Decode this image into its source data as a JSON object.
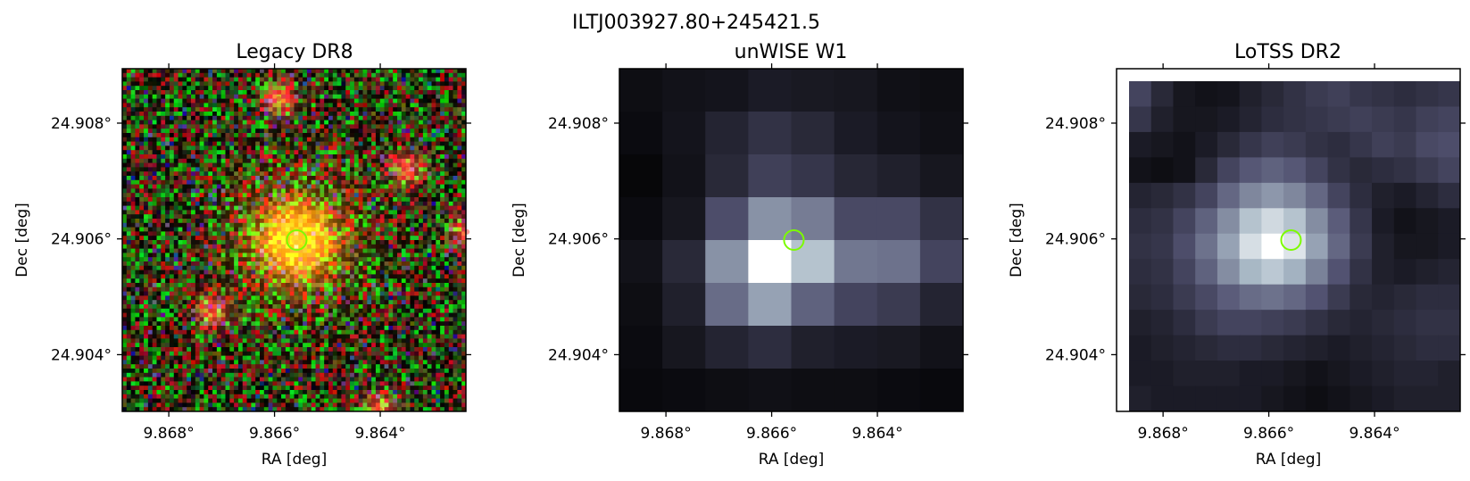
{
  "figure": {
    "suptitle": "ILTJ003927.80+245421.5"
  },
  "chart_data": [
    {
      "type": "heatmap",
      "title": "Legacy DR8",
      "xlabel": "RA [deg]",
      "ylabel": "Dec [deg]",
      "x_ticks": [
        "9.868°",
        "9.866°",
        "9.864°"
      ],
      "y_ticks": [
        "24.908°",
        "24.906°",
        "24.904°"
      ],
      "x_tick_values": [
        9.868,
        9.866,
        9.864
      ],
      "y_tick_values": [
        24.908,
        24.906,
        24.904
      ],
      "xlim": [
        9.86888,
        9.86238
      ],
      "ylim": [
        24.90302,
        24.90894
      ],
      "colormap": "rgb-composite",
      "marker": {
        "ra": 9.86558,
        "dec": 24.90598,
        "shape": "circle",
        "color": "#7cfc00"
      },
      "sources": [
        {
          "ra": 9.86558,
          "dec": 24.90598,
          "kind": "bright-center"
        },
        {
          "ra": 9.86236,
          "dec": 24.90612
        },
        {
          "ra": 9.86592,
          "dec": 24.90842
        },
        {
          "ra": 9.86718,
          "dec": 24.90475
        },
        {
          "ra": 9.8635,
          "dec": 24.90722
        },
        {
          "ra": 9.864,
          "dec": 24.90305
        }
      ]
    },
    {
      "type": "heatmap",
      "title": "unWISE W1",
      "xlabel": "RA [deg]",
      "ylabel": "Dec [deg]",
      "x_ticks": [
        "9.868°",
        "9.866°",
        "9.864°"
      ],
      "y_ticks": [
        "24.908°",
        "24.906°",
        "24.904°"
      ],
      "x_tick_values": [
        9.868,
        9.866,
        9.864
      ],
      "y_tick_values": [
        24.908,
        24.906,
        24.904
      ],
      "xlim": [
        9.86888,
        9.86238
      ],
      "ylim": [
        24.90302,
        24.90894
      ],
      "colormap": "bone",
      "marker": {
        "ra": 9.86558,
        "dec": 24.90598,
        "shape": "circle",
        "color": "#7cfc00"
      },
      "pixel_grid": [
        [
          0.06,
          0.08,
          0.09,
          0.12,
          0.11,
          0.1,
          0.07,
          0.06
        ],
        [
          0.05,
          0.09,
          0.16,
          0.22,
          0.18,
          0.12,
          0.09,
          0.07
        ],
        [
          0.03,
          0.08,
          0.18,
          0.28,
          0.24,
          0.17,
          0.14,
          0.1
        ],
        [
          0.05,
          0.1,
          0.34,
          0.6,
          0.52,
          0.32,
          0.32,
          0.22
        ],
        [
          0.08,
          0.18,
          0.6,
          1.0,
          0.78,
          0.5,
          0.48,
          0.3
        ],
        [
          0.06,
          0.14,
          0.46,
          0.66,
          0.42,
          0.3,
          0.26,
          0.16
        ],
        [
          0.05,
          0.1,
          0.16,
          0.2,
          0.14,
          0.12,
          0.11,
          0.08
        ],
        [
          0.04,
          0.05,
          0.06,
          0.07,
          0.06,
          0.06,
          0.05,
          0.04
        ]
      ]
    },
    {
      "type": "heatmap",
      "title": "LoTSS DR2",
      "xlabel": "RA [deg]",
      "ylabel": "Dec [deg]",
      "x_ticks": [
        "9.868°",
        "9.866°",
        "9.864°"
      ],
      "y_ticks": [
        "24.908°",
        "24.906°",
        "24.904°"
      ],
      "x_tick_values": [
        9.868,
        9.866,
        9.864
      ],
      "y_tick_values": [
        24.908,
        24.906,
        24.904
      ],
      "xlim": [
        9.86888,
        9.86238
      ],
      "ylim": [
        24.90302,
        24.90894
      ],
      "colormap": "bone",
      "marker": {
        "ra": 9.86558,
        "dec": 24.90598,
        "shape": "circle",
        "color": "#7cfc00"
      },
      "pixel_grid": [
        [
          0.3,
          0.18,
          0.1,
          0.08,
          0.09,
          0.14,
          0.18,
          0.22,
          0.26,
          0.28,
          0.24,
          0.22,
          0.2,
          0.22,
          0.24
        ],
        [
          0.24,
          0.14,
          0.1,
          0.1,
          0.12,
          0.16,
          0.2,
          0.22,
          0.24,
          0.26,
          0.28,
          0.26,
          0.24,
          0.28,
          0.3
        ],
        [
          0.12,
          0.1,
          0.08,
          0.12,
          0.18,
          0.24,
          0.28,
          0.26,
          0.22,
          0.2,
          0.24,
          0.28,
          0.26,
          0.32,
          0.34
        ],
        [
          0.08,
          0.06,
          0.08,
          0.18,
          0.3,
          0.38,
          0.42,
          0.38,
          0.3,
          0.22,
          0.18,
          0.2,
          0.22,
          0.26,
          0.3
        ],
        [
          0.16,
          0.18,
          0.22,
          0.3,
          0.44,
          0.56,
          0.62,
          0.56,
          0.44,
          0.3,
          0.2,
          0.14,
          0.12,
          0.16,
          0.2
        ],
        [
          0.2,
          0.22,
          0.3,
          0.42,
          0.58,
          0.78,
          0.86,
          0.78,
          0.58,
          0.4,
          0.24,
          0.12,
          0.08,
          0.1,
          0.12
        ],
        [
          0.22,
          0.24,
          0.34,
          0.48,
          0.66,
          0.88,
          1.0,
          0.9,
          0.66,
          0.44,
          0.26,
          0.14,
          0.1,
          0.1,
          0.12
        ],
        [
          0.2,
          0.22,
          0.3,
          0.42,
          0.58,
          0.74,
          0.8,
          0.72,
          0.54,
          0.36,
          0.22,
          0.14,
          0.12,
          0.14,
          0.16
        ],
        [
          0.18,
          0.2,
          0.26,
          0.32,
          0.4,
          0.46,
          0.48,
          0.44,
          0.36,
          0.26,
          0.18,
          0.16,
          0.18,
          0.2,
          0.2
        ],
        [
          0.14,
          0.16,
          0.2,
          0.26,
          0.3,
          0.3,
          0.28,
          0.26,
          0.22,
          0.18,
          0.16,
          0.18,
          0.2,
          0.22,
          0.22
        ],
        [
          0.12,
          0.14,
          0.16,
          0.18,
          0.2,
          0.2,
          0.18,
          0.16,
          0.14,
          0.12,
          0.14,
          0.16,
          0.18,
          0.2,
          0.2
        ],
        [
          0.12,
          0.12,
          0.14,
          0.14,
          0.14,
          0.12,
          0.12,
          0.1,
          0.08,
          0.1,
          0.12,
          0.14,
          0.16,
          0.16,
          0.14
        ],
        [
          0.14,
          0.12,
          0.12,
          0.12,
          0.12,
          0.12,
          0.1,
          0.08,
          0.06,
          0.08,
          0.1,
          0.12,
          0.14,
          0.14,
          0.14
        ]
      ]
    }
  ]
}
